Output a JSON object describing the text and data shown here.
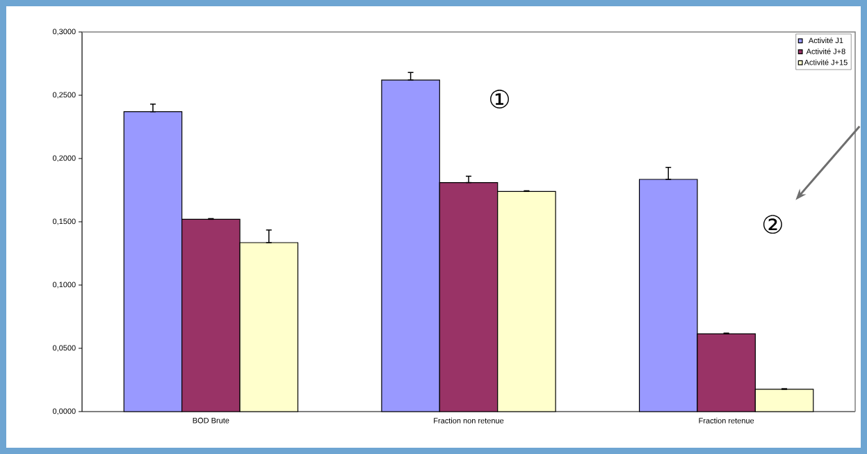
{
  "chart_data": {
    "type": "bar",
    "categories": [
      "BOD Brute",
      "Fraction non retenue",
      "Fraction retenue"
    ],
    "series": [
      {
        "name": "Activité J1",
        "color": "#9999ff",
        "values": [
          0.237,
          0.262,
          0.1835
        ],
        "errors": [
          [
            0.237,
            0.243
          ],
          [
            0.262,
            0.268
          ],
          [
            0.1835,
            0.193
          ]
        ]
      },
      {
        "name": "Activité J+8",
        "color": "#993366",
        "values": [
          0.152,
          0.181,
          0.0615
        ],
        "errors": [
          [
            0.152,
            0.1525
          ],
          [
            0.181,
            0.186
          ],
          [
            0.0615,
            0.062
          ]
        ]
      },
      {
        "name": "Activité J+15",
        "color": "#ffffcc",
        "values": [
          0.1335,
          0.174,
          0.0176
        ],
        "errors": [
          [
            0.1335,
            0.1435
          ],
          [
            0.174,
            0.1745
          ],
          [
            0.0176,
            0.0181
          ]
        ]
      }
    ],
    "ylim": [
      0,
      0.3
    ],
    "yticks": [
      {
        "value": 0,
        "label": "0,0000"
      },
      {
        "value": 0.05,
        "label": "0,0500"
      },
      {
        "value": 0.1,
        "label": "0,1000"
      },
      {
        "value": 0.15,
        "label": "0,1500"
      },
      {
        "value": 0.2,
        "label": "0,2000"
      },
      {
        "value": 0.25,
        "label": "0,2500"
      },
      {
        "value": 0.3,
        "label": "0,3000"
      }
    ],
    "legend": "top right",
    "grid": false,
    "annotations": [
      "①",
      "②"
    ]
  }
}
